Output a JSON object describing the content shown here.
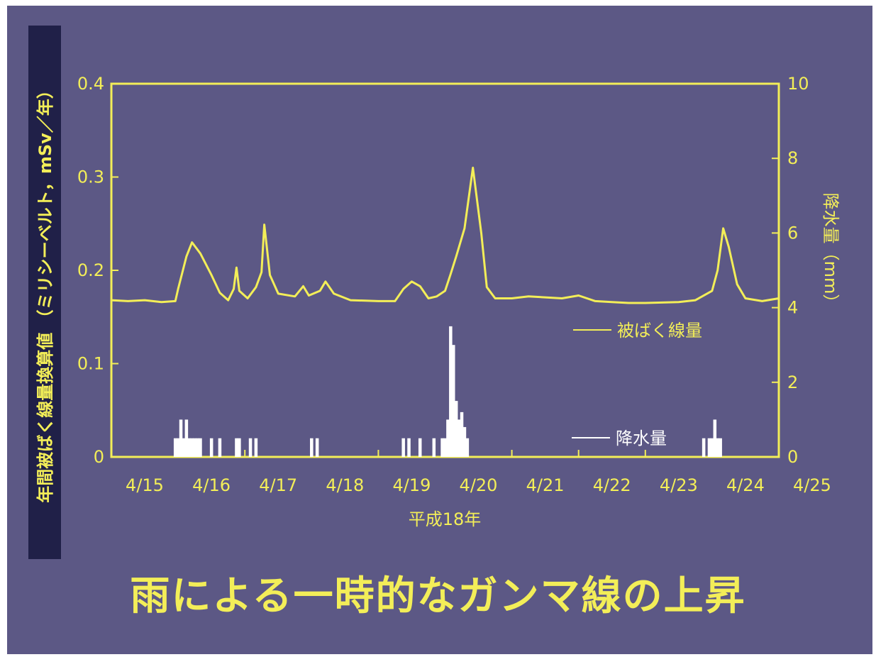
{
  "slide": {
    "caption": "雨による一時的なガンマ線の上昇"
  },
  "chart_data": {
    "type": "line",
    "xlabel": "平成18年",
    "ylabel_left": "年間被ばく線量換算値 （ミリシーベルト，mSv／年）",
    "ylabel_right": "降水量（mm）",
    "x_ticks": [
      "4/15",
      "4/16",
      "4/17",
      "4/18",
      "4/19",
      "4/20",
      "4/21",
      "4/22",
      "4/23",
      "4/24",
      "4/25"
    ],
    "x_range_days": [
      "4/15",
      "4/25"
    ],
    "y_left_ticks": [
      "0",
      "0.1",
      "0.2",
      "0.3",
      "0.4"
    ],
    "y_left_range": [
      0,
      0.4
    ],
    "y_right_ticks": [
      "0",
      "2",
      "4",
      "6",
      "8",
      "10"
    ],
    "y_right_range": [
      0,
      10
    ],
    "grid": false,
    "colors": {
      "dose": "#f3ee58",
      "rain": "#ffffff",
      "axis": "#f3ee58",
      "background": "#5c5885"
    },
    "series": [
      {
        "name": "被ばく線量",
        "axis": "left",
        "points": [
          [
            "4/15 00:00",
            0.168
          ],
          [
            "4/15 06:00",
            0.167
          ],
          [
            "4/15 12:00",
            0.168
          ],
          [
            "4/15 18:00",
            0.166
          ],
          [
            "4/15 23:00",
            0.167
          ],
          [
            "4/16 00:00",
            0.18
          ],
          [
            "4/16 03:00",
            0.215
          ],
          [
            "4/16 05:00",
            0.23
          ],
          [
            "4/16 08:00",
            0.218
          ],
          [
            "4/16 12:00",
            0.195
          ],
          [
            "4/16 15:00",
            0.176
          ],
          [
            "4/16 18:00",
            0.168
          ],
          [
            "4/16 20:00",
            0.18
          ],
          [
            "4/16 21:00",
            0.203
          ],
          [
            "4/16 22:00",
            0.178
          ],
          [
            "4/17 01:00",
            0.17
          ],
          [
            "4/17 04:00",
            0.182
          ],
          [
            "4/17 06:00",
            0.198
          ],
          [
            "4/17 07:00",
            0.249
          ],
          [
            "4/17 09:00",
            0.195
          ],
          [
            "4/17 12:00",
            0.175
          ],
          [
            "4/17 18:00",
            0.172
          ],
          [
            "4/17 21:00",
            0.183
          ],
          [
            "4/17 23:00",
            0.173
          ],
          [
            "4/18 03:00",
            0.178
          ],
          [
            "4/18 05:00",
            0.188
          ],
          [
            "4/18 08:00",
            0.175
          ],
          [
            "4/18 14:00",
            0.168
          ],
          [
            "4/19 00:00",
            0.167
          ],
          [
            "4/19 06:00",
            0.167
          ],
          [
            "4/19 09:00",
            0.18
          ],
          [
            "4/19 12:00",
            0.188
          ],
          [
            "4/19 15:00",
            0.183
          ],
          [
            "4/19 18:00",
            0.17
          ],
          [
            "4/19 21:00",
            0.172
          ],
          [
            "4/20 00:00",
            0.178
          ],
          [
            "4/20 02:00",
            0.196
          ],
          [
            "4/20 04:00",
            0.215
          ],
          [
            "4/20 07:00",
            0.245
          ],
          [
            "4/20 10:00",
            0.31
          ],
          [
            "4/20 13:00",
            0.24
          ],
          [
            "4/20 15:00",
            0.182
          ],
          [
            "4/20 18:00",
            0.17
          ],
          [
            "4/21 00:00",
            0.17
          ],
          [
            "4/21 06:00",
            0.172
          ],
          [
            "4/21 12:00",
            0.171
          ],
          [
            "4/21 18:00",
            0.17
          ],
          [
            "4/22 00:00",
            0.173
          ],
          [
            "4/22 06:00",
            0.167
          ],
          [
            "4/22 12:00",
            0.166
          ],
          [
            "4/22 18:00",
            0.165
          ],
          [
            "4/23 00:00",
            0.165
          ],
          [
            "4/23 12:00",
            0.166
          ],
          [
            "4/23 18:00",
            0.168
          ],
          [
            "4/24 00:00",
            0.178
          ],
          [
            "4/24 02:00",
            0.2
          ],
          [
            "4/24 04:00",
            0.245
          ],
          [
            "4/24 06:00",
            0.225
          ],
          [
            "4/24 09:00",
            0.185
          ],
          [
            "4/24 12:00",
            0.17
          ],
          [
            "4/24 18:00",
            0.167
          ],
          [
            "4/25 00:00",
            0.17
          ]
        ]
      },
      {
        "name": "降水量",
        "axis": "right",
        "type": "bar",
        "points": [
          [
            "4/15 23:00",
            0.5
          ],
          [
            "4/16 00:00",
            0.5
          ],
          [
            "4/16 01:00",
            1.0
          ],
          [
            "4/16 02:00",
            0.5
          ],
          [
            "4/16 03:00",
            1.0
          ],
          [
            "4/16 04:00",
            0.5
          ],
          [
            "4/16 05:00",
            0.5
          ],
          [
            "4/16 06:00",
            0.5
          ],
          [
            "4/16 07:00",
            0.5
          ],
          [
            "4/16 08:00",
            0.5
          ],
          [
            "4/16 12:00",
            0.5
          ],
          [
            "4/16 15:00",
            0.5
          ],
          [
            "4/16 21:00",
            0.5
          ],
          [
            "4/16 22:00",
            0.5
          ],
          [
            "4/17 02:00",
            0.5
          ],
          [
            "4/17 04:00",
            0.5
          ],
          [
            "4/18 00:00",
            0.5
          ],
          [
            "4/18 02:00",
            0.5
          ],
          [
            "4/19 09:00",
            0.5
          ],
          [
            "4/19 11:00",
            0.5
          ],
          [
            "4/19 15:00",
            0.5
          ],
          [
            "4/19 20:00",
            0.5
          ],
          [
            "4/19 23:00",
            0.5
          ],
          [
            "4/20 00:00",
            0.5
          ],
          [
            "4/20 01:00",
            1.0
          ],
          [
            "4/20 02:00",
            3.5
          ],
          [
            "4/20 03:00",
            3.0
          ],
          [
            "4/20 04:00",
            1.5
          ],
          [
            "4/20 05:00",
            1.0
          ],
          [
            "4/20 06:00",
            1.2
          ],
          [
            "4/20 07:00",
            0.8
          ],
          [
            "4/20 08:00",
            0.5
          ],
          [
            "4/23 21:00",
            0.5
          ],
          [
            "4/23 23:00",
            0.5
          ],
          [
            "4/24 00:00",
            0.5
          ],
          [
            "4/24 01:00",
            1.0
          ],
          [
            "4/24 02:00",
            0.5
          ],
          [
            "4/24 03:00",
            0.5
          ]
        ]
      }
    ]
  }
}
